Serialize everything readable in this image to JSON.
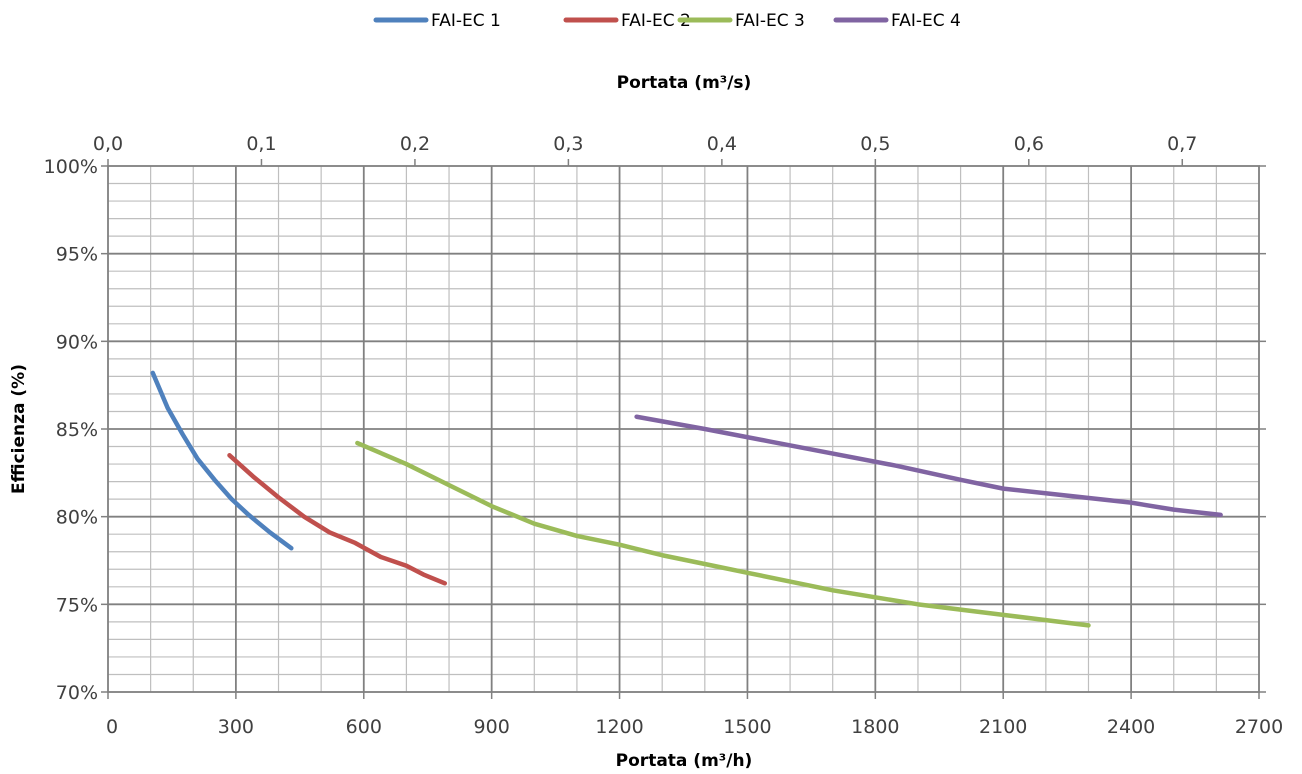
{
  "chart_data": {
    "type": "line",
    "title": "",
    "xlabel": "Portata (m³/h)",
    "x2label": "Portata (m³/s)",
    "ylabel": "Efficienza (%)",
    "xlim": [
      0,
      2700
    ],
    "ylim": [
      70,
      100
    ],
    "x_ticks": [
      0,
      300,
      600,
      900,
      1200,
      1500,
      1800,
      2100,
      2400,
      2700
    ],
    "x_tick_labels": [
      "0",
      "300",
      "600",
      "900",
      "1200",
      "1500",
      "1800",
      "2100",
      "2400",
      "2700"
    ],
    "x2_ticks": [
      0.0,
      0.1,
      0.2,
      0.3,
      0.4,
      0.5,
      0.6,
      0.7
    ],
    "x2_tick_labels": [
      "0,0",
      "0,1",
      "0,2",
      "0,3",
      "0,4",
      "0,5",
      "0,6",
      "0,7"
    ],
    "y_ticks": [
      70,
      75,
      80,
      85,
      90,
      95,
      100
    ],
    "y_tick_labels": [
      "70%",
      "75%",
      "80%",
      "85%",
      "90%",
      "95%",
      "100%"
    ],
    "grid": true,
    "legend_position": "top",
    "series": [
      {
        "name": "FAI-EC 1",
        "color": "#4F81BD",
        "points": [
          [
            105,
            88.2
          ],
          [
            140,
            86.2
          ],
          [
            175,
            84.7
          ],
          [
            210,
            83.3
          ],
          [
            250,
            82.1
          ],
          [
            290,
            81.0
          ],
          [
            330,
            80.1
          ],
          [
            380,
            79.1
          ],
          [
            430,
            78.2
          ]
        ]
      },
      {
        "name": "FAI-EC 2",
        "color": "#C0504D",
        "points": [
          [
            285,
            83.5
          ],
          [
            340,
            82.3
          ],
          [
            400,
            81.1
          ],
          [
            460,
            80.0
          ],
          [
            520,
            79.1
          ],
          [
            580,
            78.5
          ],
          [
            640,
            77.7
          ],
          [
            700,
            77.2
          ],
          [
            740,
            76.7
          ],
          [
            790,
            76.2
          ]
        ]
      },
      {
        "name": "FAI-EC 3",
        "color": "#9BBB59",
        "points": [
          [
            585,
            84.2
          ],
          [
            700,
            83.0
          ],
          [
            800,
            81.8
          ],
          [
            900,
            80.6
          ],
          [
            1000,
            79.6
          ],
          [
            1100,
            78.9
          ],
          [
            1200,
            78.4
          ],
          [
            1300,
            77.8
          ],
          [
            1400,
            77.3
          ],
          [
            1500,
            76.8
          ],
          [
            1600,
            76.3
          ],
          [
            1700,
            75.8
          ],
          [
            1800,
            75.4
          ],
          [
            1900,
            75.0
          ],
          [
            2000,
            74.7
          ],
          [
            2100,
            74.4
          ],
          [
            2200,
            74.1
          ],
          [
            2300,
            73.8
          ]
        ]
      },
      {
        "name": "FAI-EC 4",
        "color": "#8064A2",
        "points": [
          [
            1240,
            85.7
          ],
          [
            1400,
            85.0
          ],
          [
            1550,
            84.3
          ],
          [
            1700,
            83.6
          ],
          [
            1850,
            82.9
          ],
          [
            2000,
            82.1
          ],
          [
            2100,
            81.6
          ],
          [
            2250,
            81.2
          ],
          [
            2400,
            80.8
          ],
          [
            2500,
            80.4
          ],
          [
            2610,
            80.1
          ]
        ]
      }
    ]
  }
}
